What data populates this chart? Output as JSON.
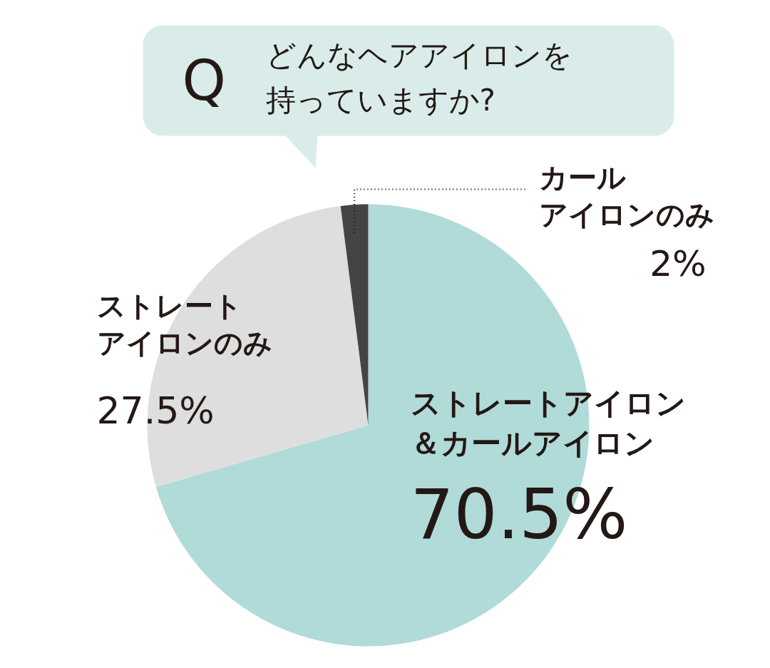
{
  "chart_data": {
    "type": "pie",
    "title": "Q どんなヘアアイロンを持っていますか?",
    "categories": [
      "ストレートアイロン＆カールアイロン",
      "ストレートアイロンのみ",
      "カールアイロンのみ"
    ],
    "values": [
      70.5,
      27.5,
      2
    ],
    "value_labels": [
      "70.5%",
      "27.5%",
      "2%"
    ],
    "colors": [
      "#b0dbd9",
      "#dedede",
      "#444444"
    ]
  }
}
